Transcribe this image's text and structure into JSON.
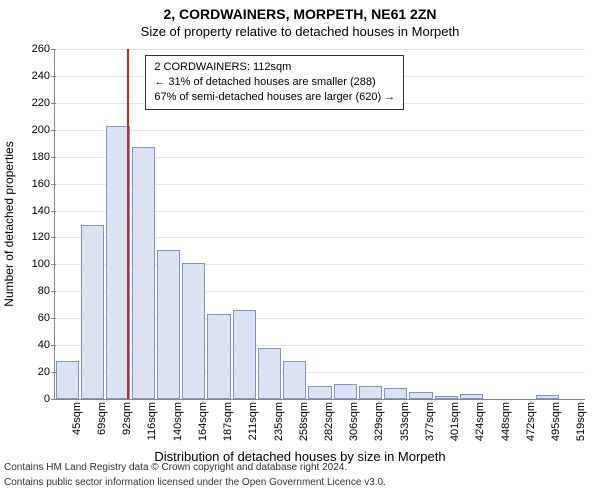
{
  "title_main": "2, CORDWAINERS, MORPETH, NE61 2ZN",
  "title_sub": "Size of property relative to detached houses in Morpeth",
  "y_axis": {
    "label": "Number of detached properties",
    "min": 0,
    "max": 260,
    "tick_step": 20,
    "ticks": [
      0,
      20,
      40,
      60,
      80,
      100,
      120,
      140,
      160,
      180,
      200,
      220,
      240,
      260
    ]
  },
  "x_axis": {
    "label": "Distribution of detached houses by size in Morpeth",
    "tick_labels": [
      "45sqm",
      "69sqm",
      "92sqm",
      "116sqm",
      "140sqm",
      "164sqm",
      "187sqm",
      "211sqm",
      "235sqm",
      "258sqm",
      "282sqm",
      "306sqm",
      "329sqm",
      "353sqm",
      "377sqm",
      "401sqm",
      "424sqm",
      "448sqm",
      "472sqm",
      "495sqm",
      "519sqm"
    ]
  },
  "bars": {
    "values": [
      28,
      129,
      203,
      187,
      111,
      101,
      63,
      66,
      38,
      28,
      10,
      11,
      10,
      8,
      5,
      2,
      4,
      0,
      0,
      3,
      0
    ],
    "fill_color": "#dbe3f3",
    "stroke_color": "#7f94c8",
    "width_rel": 0.92
  },
  "marker": {
    "value_sqm": 112,
    "color": "#d22222",
    "callout_lines": [
      "2 CORDWAINERS: 112sqm",
      "← 31% of detached houses are smaller (288)",
      "67% of semi-detached houses are larger (620) →"
    ]
  },
  "grid": {
    "color": "#e6e6e6"
  },
  "background_color": "#ffffff",
  "footer": [
    "Contains HM Land Registry data © Crown copyright and database right 2024.",
    "Contains public sector information licensed under the Open Government Licence v3.0."
  ]
}
